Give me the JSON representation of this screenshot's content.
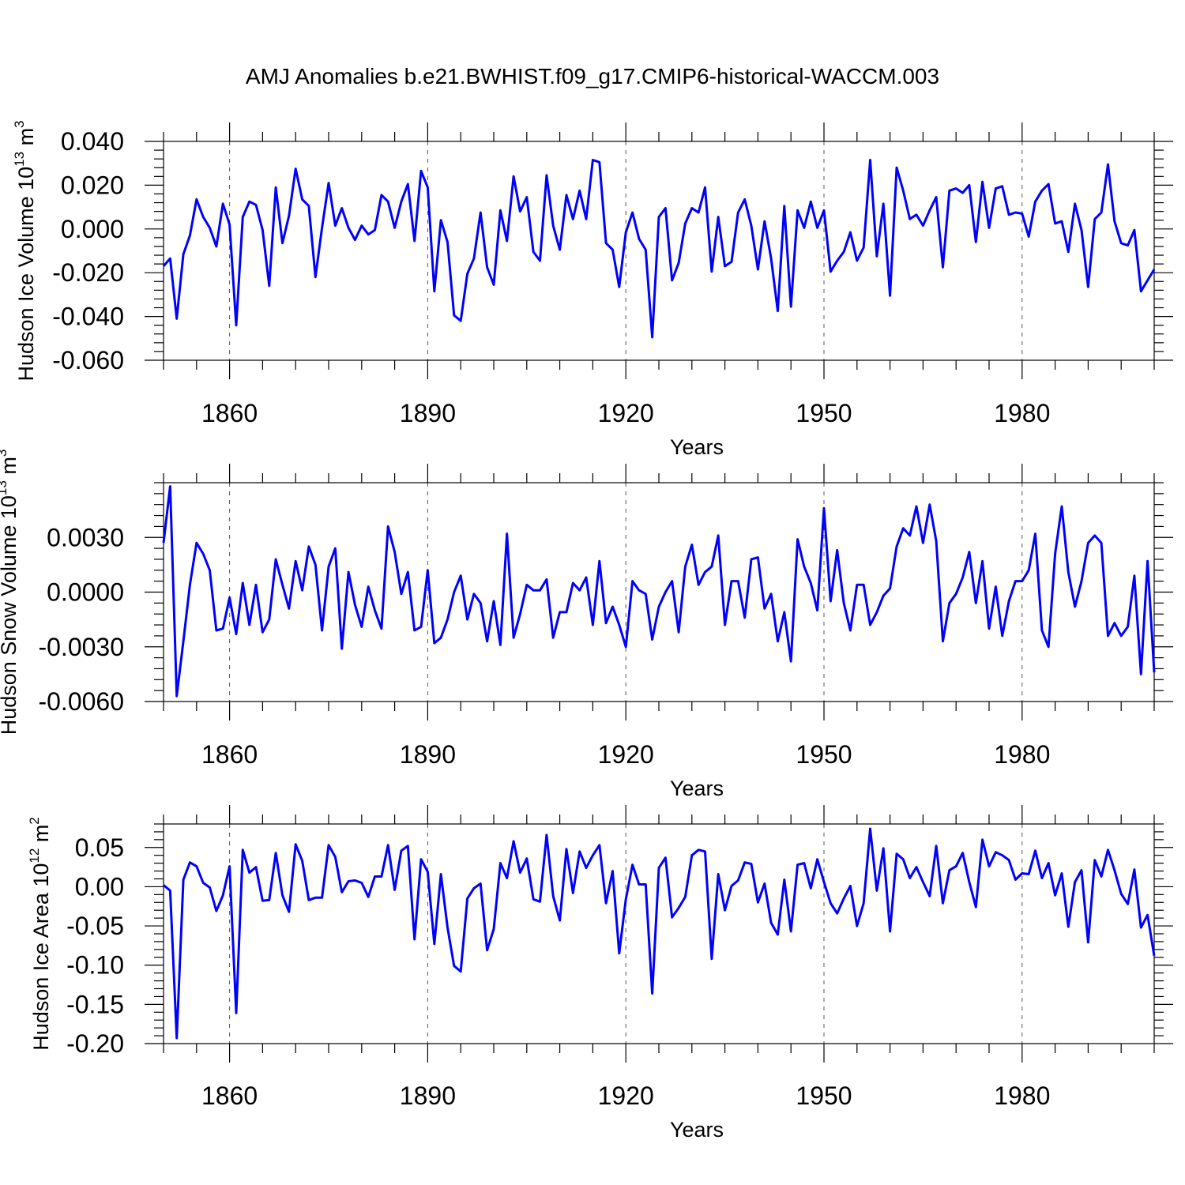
{
  "figure": {
    "title": "AMJ Anomalies b.e21.BWHIST.f09_g17.CMIP6-historical-WACCM.003",
    "line_color": "#0000ff",
    "axis_color": "#000000"
  },
  "chart_data": [
    {
      "type": "line",
      "ylabel": "Hudson Ice Volume 10",
      "ylabel_exp": "13",
      "ylabel_unit": " m",
      "ylabel_unit_exp": "3",
      "xlabel": "Years",
      "xlim": [
        1850,
        2000
      ],
      "ylim": [
        -0.06,
        0.04
      ],
      "xticks": [
        1860,
        1890,
        1920,
        1950,
        1980
      ],
      "xtick_labels": [
        "1860",
        "1890",
        "1920",
        "1950",
        "1980"
      ],
      "yticks": [
        -0.06,
        -0.04,
        -0.02,
        0.0,
        0.02,
        0.04
      ],
      "ytick_labels": [
        "-0.060",
        "-0.040",
        "-0.020",
        "0.000",
        "0.020",
        "0.040"
      ],
      "x_start": 1850,
      "values": [
        -0.017,
        -0.0135,
        -0.041,
        -0.0115,
        -0.003,
        0.0135,
        0.0055,
        0.0005,
        -0.008,
        0.0115,
        0.002,
        -0.044,
        0.0055,
        0.0125,
        0.011,
        -0.0005,
        -0.026,
        0.019,
        -0.0065,
        0.006,
        0.0275,
        0.0135,
        0.0105,
        -0.022,
        0.0005,
        0.021,
        0.0015,
        0.0095,
        0.0005,
        -0.005,
        0.0015,
        -0.0025,
        -0.0005,
        0.0155,
        0.0125,
        0.0005,
        0.0125,
        0.0205,
        -0.0055,
        0.0265,
        0.019,
        -0.0285,
        0.004,
        -0.006,
        -0.0395,
        -0.042,
        -0.0205,
        -0.0135,
        0.0075,
        -0.0175,
        -0.0255,
        0.0085,
        -0.0055,
        0.024,
        0.008,
        0.0145,
        -0.0105,
        -0.0145,
        0.0245,
        0.0015,
        -0.0095,
        0.0155,
        0.0045,
        0.0175,
        0.0045,
        0.0315,
        0.0305,
        -0.0065,
        -0.0095,
        -0.0265,
        -0.0015,
        0.0075,
        -0.0045,
        -0.0095,
        -0.0495,
        0.0055,
        0.0095,
        -0.0235,
        -0.0155,
        0.0025,
        0.0095,
        0.0075,
        0.019,
        -0.0195,
        0.0055,
        -0.017,
        -0.015,
        0.0075,
        0.0135,
        0.0015,
        -0.0185,
        0.0035,
        -0.0135,
        -0.0375,
        0.0105,
        -0.0355,
        0.0085,
        0.0005,
        0.0125,
        0.0005,
        0.0085,
        -0.0195,
        -0.0145,
        -0.0105,
        -0.0015,
        -0.0145,
        -0.0085,
        0.0315,
        -0.0125,
        0.0115,
        -0.0305,
        0.028,
        0.0175,
        0.0045,
        0.0065,
        0.0015,
        0.0085,
        0.0145,
        -0.0175,
        0.0175,
        0.0185,
        0.0165,
        0.02,
        -0.006,
        0.0215,
        0.0005,
        0.0185,
        0.0195,
        0.0065,
        0.0075,
        0.007,
        -0.0035,
        0.0125,
        0.0175,
        0.0205,
        0.0025,
        0.0035,
        -0.0105,
        0.0115,
        -0.0005,
        -0.0265,
        0.0045,
        0.0075,
        0.0295,
        0.0035,
        -0.0065,
        -0.0075,
        -0.0005,
        -0.0285,
        -0.0235,
        -0.0185
      ]
    },
    {
      "type": "line",
      "ylabel": "Hudson Snow Volume 10",
      "ylabel_exp": "13",
      "ylabel_unit": " m",
      "ylabel_unit_exp": "3",
      "xlabel": "Years",
      "xlim": [
        1850,
        2000
      ],
      "ylim": [
        -0.006,
        0.006
      ],
      "xticks": [
        1860,
        1890,
        1920,
        1950,
        1980
      ],
      "xtick_labels": [
        "1860",
        "1890",
        "1920",
        "1950",
        "1980"
      ],
      "yticks": [
        -0.006,
        -0.003,
        0.0,
        0.003
      ],
      "ytick_labels": [
        "-0.0060",
        "-0.0030",
        "0.0000",
        "0.0030"
      ],
      "x_start": 1850,
      "values": [
        0.0027,
        0.0058,
        -0.0057,
        -0.0027,
        0.0004,
        0.0027,
        0.0021,
        0.0012,
        -0.0021,
        -0.002,
        -0.0003,
        -0.0023,
        0.0005,
        -0.0018,
        0.0004,
        -0.0022,
        -0.0015,
        0.0018,
        0.0004,
        -0.0009,
        0.0017,
        0.0001,
        0.0025,
        0.0015,
        -0.0021,
        0.0014,
        0.0024,
        -0.0031,
        0.0011,
        -0.0007,
        -0.0019,
        0.0003,
        -0.001,
        -0.002,
        0.0036,
        0.0022,
        -0.0001,
        0.0011,
        -0.0021,
        -0.0019,
        0.0012,
        -0.0028,
        -0.0025,
        -0.0015,
        0.0,
        0.0009,
        -0.0015,
        -0.0001,
        -0.0006,
        -0.0027,
        -0.0005,
        -0.0029,
        0.0032,
        -0.0025,
        -0.0012,
        0.0004,
        0.0001,
        0.0001,
        0.0007,
        -0.0025,
        -0.0011,
        -0.0011,
        0.0005,
        0.0001,
        0.0008,
        -0.0018,
        0.0017,
        -0.0017,
        -0.0008,
        -0.0018,
        -0.003,
        0.0006,
        0.0001,
        -0.0001,
        -0.0026,
        -0.0008,
        0.0,
        0.0006,
        -0.0022,
        0.0014,
        0.0026,
        0.0004,
        0.0011,
        0.0014,
        0.0031,
        -0.0018,
        0.0006,
        0.0006,
        -0.0014,
        0.0018,
        0.0019,
        -0.0009,
        -0.0001,
        -0.0027,
        -0.0011,
        -0.0038,
        0.0029,
        0.0014,
        0.0005,
        -0.001,
        0.0046,
        -0.0005,
        0.0023,
        -0.0006,
        -0.0021,
        0.0004,
        0.0004,
        -0.0018,
        -0.0011,
        -0.0002,
        0.0002,
        0.0025,
        0.0035,
        0.0031,
        0.0047,
        0.0027,
        0.0048,
        0.0028,
        -0.0027,
        -0.0006,
        -0.0001,
        0.0008,
        0.0022,
        -0.0006,
        0.0017,
        -0.002,
        0.0003,
        -0.0024,
        -0.0005,
        0.0006,
        0.0006,
        0.0012,
        0.0032,
        -0.0021,
        -0.003,
        0.0021,
        0.0047,
        0.0011,
        -0.0008,
        0.0006,
        0.0027,
        0.0031,
        0.0027,
        -0.0024,
        -0.0017,
        -0.0024,
        -0.0019,
        0.0009,
        -0.0045,
        0.0017,
        -0.0044
      ]
    },
    {
      "type": "line",
      "ylabel": "Hudson Ice Area 10",
      "ylabel_exp": "12",
      "ylabel_unit": " m",
      "ylabel_unit_exp": "2",
      "xlabel": "Years",
      "xlim": [
        1850,
        2000
      ],
      "ylim": [
        -0.2,
        0.08
      ],
      "xticks": [
        1860,
        1890,
        1920,
        1950,
        1980
      ],
      "xtick_labels": [
        "1860",
        "1890",
        "1920",
        "1950",
        "1980"
      ],
      "yticks": [
        -0.2,
        -0.15,
        -0.1,
        -0.05,
        0.0,
        0.05
      ],
      "ytick_labels": [
        "-0.20",
        "-0.15",
        "-0.10",
        "-0.05",
        "0.00",
        "0.05"
      ],
      "x_start": 1850,
      "values": [
        0.002,
        -0.005,
        -0.193,
        0.009,
        0.031,
        0.026,
        0.005,
        -0.001,
        -0.031,
        -0.011,
        0.026,
        -0.161,
        0.047,
        0.018,
        0.025,
        -0.018,
        -0.017,
        0.043,
        -0.011,
        -0.032,
        0.054,
        0.033,
        -0.017,
        -0.014,
        -0.014,
        0.053,
        0.038,
        -0.007,
        0.007,
        0.008,
        0.005,
        -0.013,
        0.013,
        0.013,
        0.053,
        -0.004,
        0.046,
        0.052,
        -0.067,
        0.035,
        0.019,
        -0.073,
        0.016,
        -0.052,
        -0.101,
        -0.108,
        -0.015,
        -0.002,
        0.004,
        -0.081,
        -0.054,
        0.03,
        0.011,
        0.058,
        0.018,
        0.036,
        -0.016,
        -0.019,
        0.066,
        -0.012,
        -0.043,
        0.048,
        -0.008,
        0.045,
        0.024,
        0.04,
        0.053,
        -0.021,
        0.02,
        -0.085,
        -0.016,
        0.028,
        0.003,
        0.003,
        -0.136,
        0.024,
        0.037,
        -0.039,
        -0.027,
        -0.013,
        0.04,
        0.047,
        0.045,
        -0.092,
        0.016,
        -0.03,
        0.001,
        0.008,
        0.031,
        0.029,
        -0.02,
        0.004,
        -0.046,
        -0.061,
        0.009,
        -0.057,
        0.028,
        0.03,
        -0.002,
        0.035,
        0.006,
        -0.021,
        -0.034,
        -0.015,
        0.001,
        -0.05,
        -0.021,
        0.074,
        -0.005,
        0.049,
        -0.057,
        0.042,
        0.035,
        0.011,
        0.025,
        0.006,
        -0.012,
        0.052,
        -0.021,
        0.021,
        0.026,
        0.043,
        0.006,
        -0.026,
        0.06,
        0.026,
        0.044,
        0.04,
        0.034,
        0.009,
        0.017,
        0.016,
        0.046,
        0.011,
        0.03,
        -0.011,
        0.017,
        -0.051,
        0.006,
        0.021,
        -0.071,
        0.034,
        0.013,
        0.047,
        0.021,
        -0.009,
        -0.022,
        0.022,
        -0.052,
        -0.036,
        -0.088
      ]
    }
  ]
}
